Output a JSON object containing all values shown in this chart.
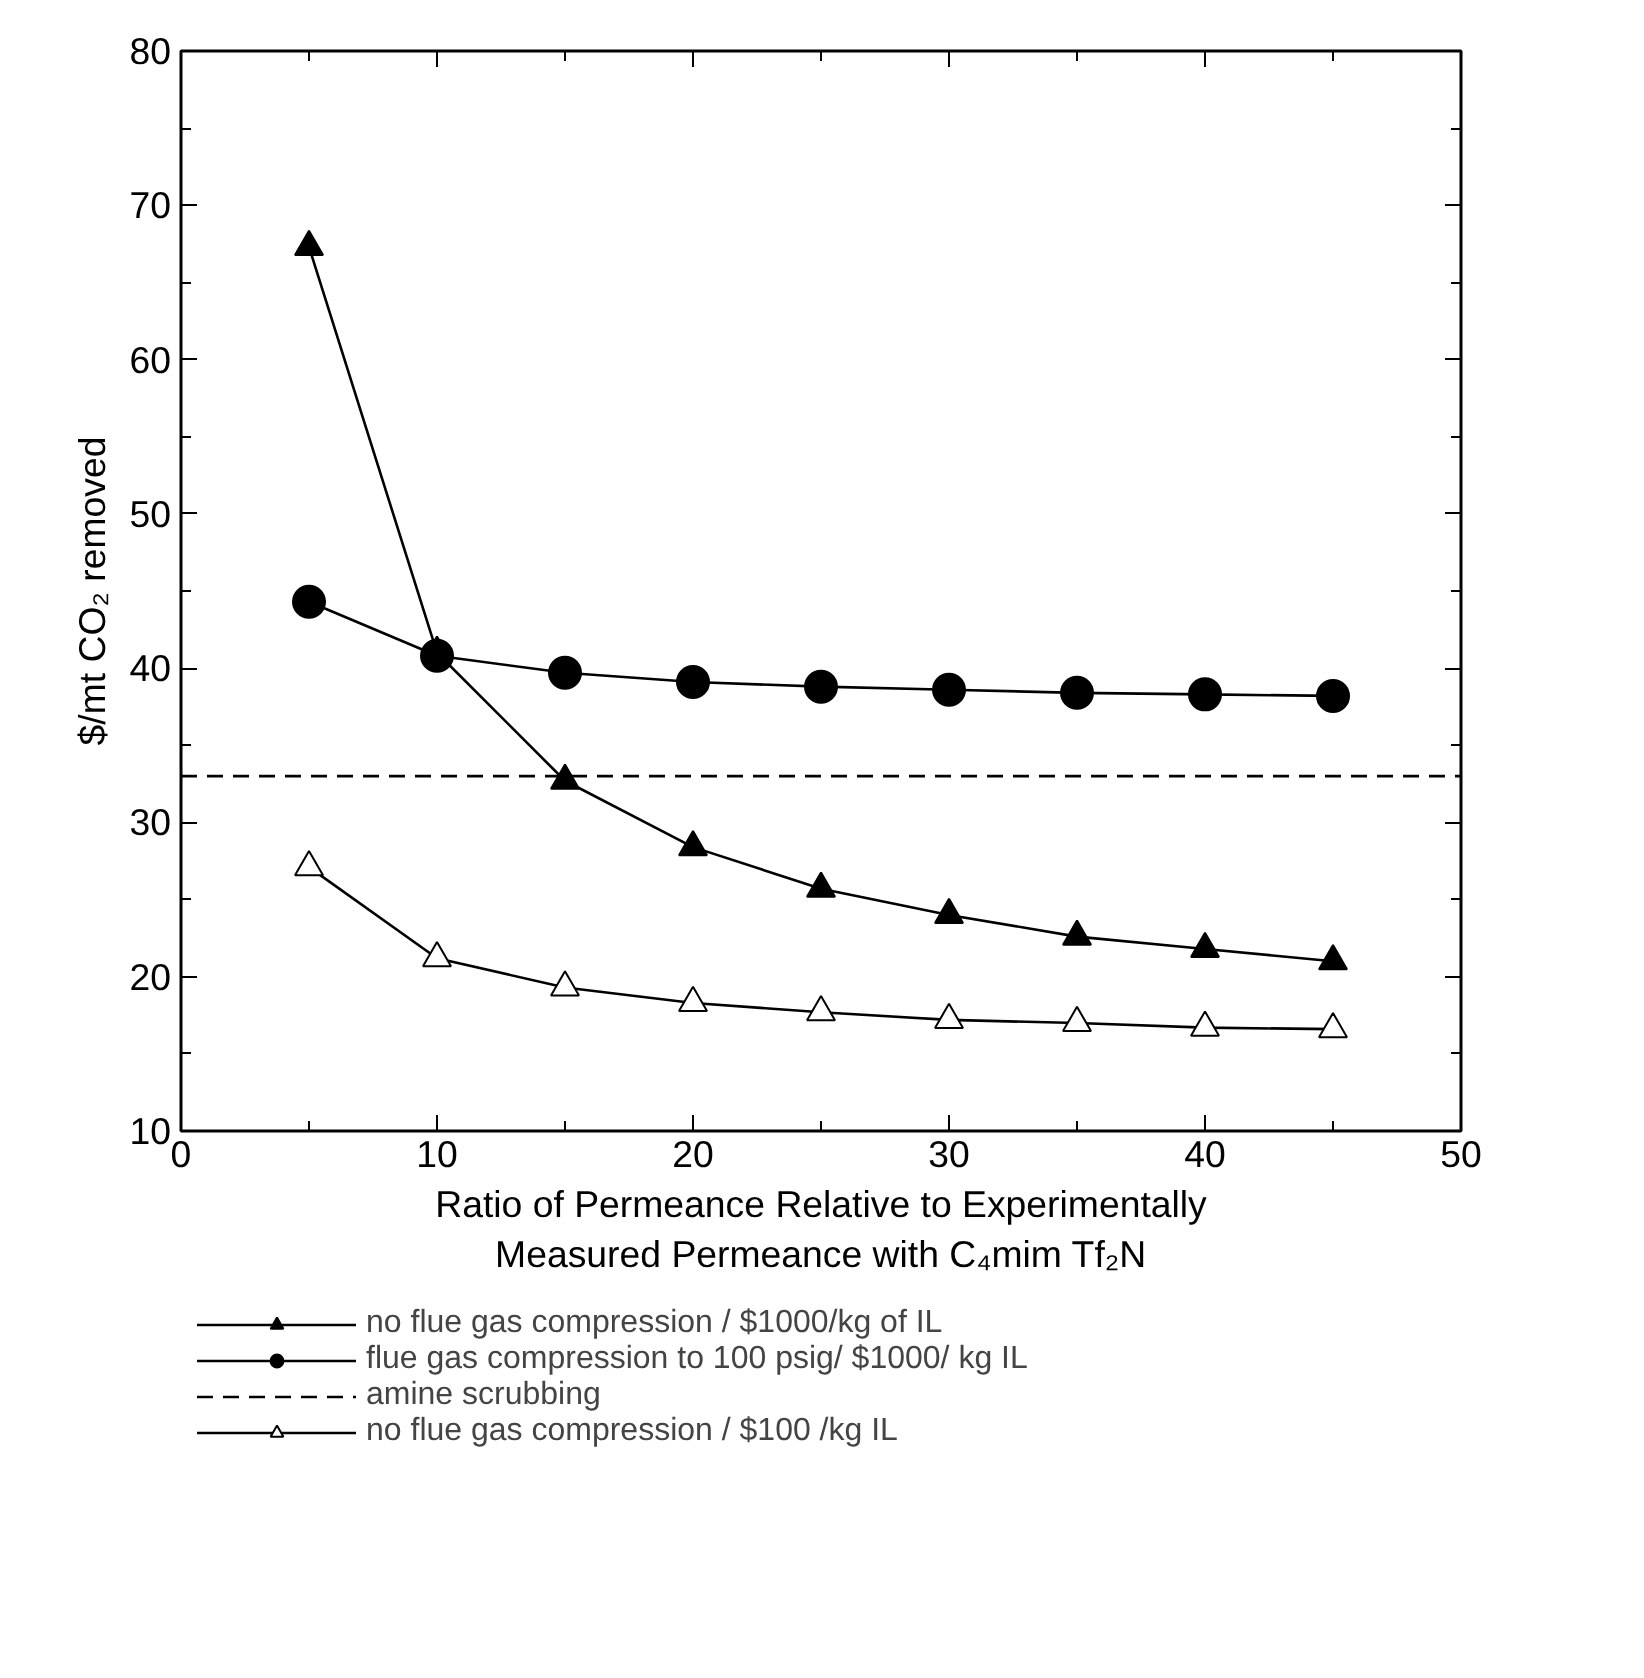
{
  "chart_data": {
    "type": "line",
    "xlabel": "Ratio of Permeance Relative to Experimentally\nMeasured Permeance with C₄mim Tf₂N",
    "ylabel": "$/mt CO₂ removed",
    "x": [
      5,
      10,
      15,
      20,
      25,
      30,
      35,
      40,
      45
    ],
    "series": [
      {
        "name": "no flue gas compression / $1000/kg of IL",
        "color": "#000000",
        "marker": "triangle",
        "values": [
          67.3,
          41.0,
          32.7,
          28.4,
          25.7,
          24.0,
          22.6,
          21.8,
          21.0
        ]
      },
      {
        "name": "flue gas compression to 100 psig/ $1000/ kg IL",
        "color": "#000000",
        "marker": "circle",
        "values": [
          44.3,
          40.8,
          39.7,
          39.1,
          38.8,
          38.6,
          38.4,
          38.3,
          38.2
        ]
      },
      {
        "name": "no flue gas compression / $100 /kg IL",
        "color": "#000000",
        "marker": "triangle_open",
        "values": [
          27.1,
          21.2,
          19.3,
          18.3,
          17.7,
          17.2,
          17.0,
          16.7,
          16.6
        ]
      }
    ],
    "ref_lines": [
      {
        "axis": "y",
        "value": 33,
        "label": "amine scrubbing",
        "color": "#000000",
        "line_style": "dashed"
      }
    ],
    "xlim": [
      0,
      50
    ],
    "ylim": [
      10,
      80
    ],
    "xticks": [
      0,
      10,
      20,
      30,
      40,
      50
    ],
    "yticks": [
      10,
      20,
      30,
      40,
      50,
      60,
      70,
      80
    ],
    "grid": false,
    "legend": "bottom",
    "line_style": "solid"
  }
}
